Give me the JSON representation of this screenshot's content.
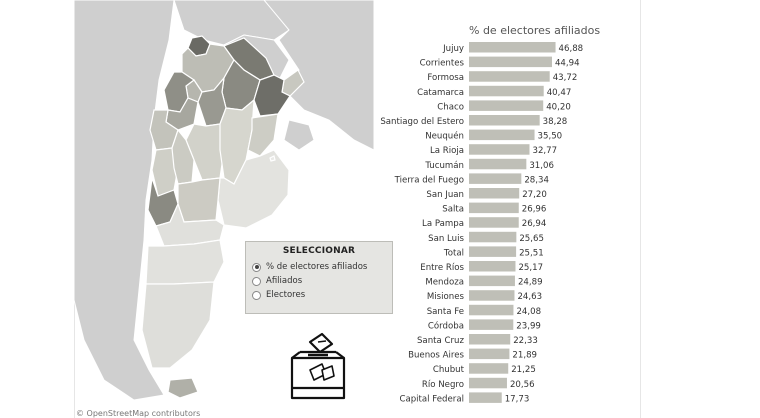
{
  "attribution": "© OpenStreetMap contributors",
  "selector": {
    "title": "SELECCIONAR",
    "options": [
      {
        "label": "% de electores afiliados",
        "selected": true
      },
      {
        "label": "Afiliados",
        "selected": false
      },
      {
        "label": "Electores",
        "selected": false
      }
    ]
  },
  "chart_data": {
    "type": "bar",
    "orientation": "horizontal",
    "title": "% de electores afiliados",
    "categories": [
      "Jujuy",
      "Corrientes",
      "Formosa",
      "Catamarca",
      "Chaco",
      "Santiago del Estero",
      "Neuquén",
      "La Rioja",
      "Tucumán",
      "Tierra del Fuego",
      "San Juan",
      "Salta",
      "La Pampa",
      "San Luis",
      "Total",
      "Entre Ríos",
      "Mendoza",
      "Misiones",
      "Santa Fe",
      "Córdoba",
      "Santa Cruz",
      "Buenos Aires",
      "Chubut",
      "Río Negro",
      "Capital Federal"
    ],
    "values": [
      46.88,
      44.94,
      43.72,
      40.47,
      40.2,
      38.28,
      35.5,
      32.77,
      31.06,
      28.34,
      27.2,
      26.96,
      26.94,
      25.65,
      25.51,
      25.17,
      24.89,
      24.63,
      24.08,
      23.99,
      22.33,
      21.89,
      21.25,
      20.56,
      17.73
    ],
    "value_labels": [
      "46,88",
      "44,94",
      "43,72",
      "40,47",
      "40,20",
      "38,28",
      "35,50",
      "32,77",
      "31,06",
      "28,34",
      "27,20",
      "26,96",
      "26,94",
      "25,65",
      "25,51",
      "25,17",
      "24,89",
      "24,63",
      "24,08",
      "23,99",
      "22,33",
      "21,89",
      "21,25",
      "20,56",
      "17,73"
    ],
    "bar_color": "#bfbfb7",
    "xlim": [
      0,
      52
    ],
    "grid": false,
    "legend": "none"
  },
  "map_colors": {
    "darkest": "#6a6a64",
    "dark": "#8a8a82",
    "mid": "#a9a9a1",
    "light": "#c8c8c0",
    "lightest": "#e3e3df",
    "neighbor": "#cfcfcf"
  }
}
